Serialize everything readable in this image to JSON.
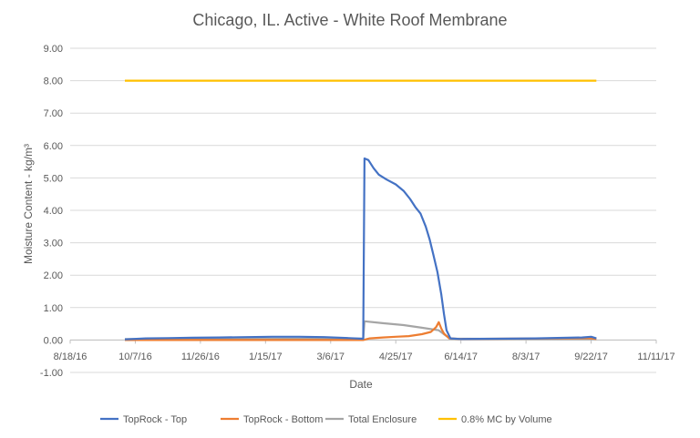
{
  "chart_data": {
    "type": "line",
    "title": "Chicago, IL.  Active - White Roof Membrane",
    "xlabel": "Date",
    "ylabel": "Moisture Content - kg/m³",
    "ylim": [
      -1.0,
      9.0
    ],
    "xlim": [
      "2016-08-18",
      "2017-11-11"
    ],
    "grid": "horizontal",
    "legend_position": "bottom",
    "y_ticks": [
      "-1.00",
      "0.00",
      "1.00",
      "2.00",
      "3.00",
      "4.00",
      "5.00",
      "6.00",
      "7.00",
      "8.00",
      "9.00"
    ],
    "x_ticks": [
      {
        "label": "8/18/16",
        "date": "2016-08-18"
      },
      {
        "label": "10/7/16",
        "date": "2016-10-07"
      },
      {
        "label": "11/26/16",
        "date": "2016-11-26"
      },
      {
        "label": "1/15/17",
        "date": "2017-01-15"
      },
      {
        "label": "3/6/17",
        "date": "2017-03-06"
      },
      {
        "label": "4/25/17",
        "date": "2017-04-25"
      },
      {
        "label": "6/14/17",
        "date": "2017-06-14"
      },
      {
        "label": "8/3/17",
        "date": "2017-08-03"
      },
      {
        "label": "9/22/17",
        "date": "2017-09-22"
      },
      {
        "label": "11/11/17",
        "date": "2017-11-11"
      }
    ],
    "series": [
      {
        "name": "TopRock - Top",
        "color": "#4472c4",
        "points": [
          [
            "2016-09-29",
            0.02
          ],
          [
            "2016-10-15",
            0.05
          ],
          [
            "2016-11-01",
            0.06
          ],
          [
            "2016-11-20",
            0.07
          ],
          [
            "2016-12-10",
            0.08
          ],
          [
            "2017-01-01",
            0.09
          ],
          [
            "2017-01-20",
            0.1
          ],
          [
            "2017-02-10",
            0.1
          ],
          [
            "2017-03-01",
            0.09
          ],
          [
            "2017-03-20",
            0.06
          ],
          [
            "2017-03-31",
            0.04
          ],
          [
            "2017-04-01",
            5.6
          ],
          [
            "2017-04-04",
            5.55
          ],
          [
            "2017-04-08",
            5.3
          ],
          [
            "2017-04-12",
            5.1
          ],
          [
            "2017-04-18",
            4.95
          ],
          [
            "2017-04-25",
            4.8
          ],
          [
            "2017-05-01",
            4.6
          ],
          [
            "2017-05-06",
            4.35
          ],
          [
            "2017-05-10",
            4.1
          ],
          [
            "2017-05-14",
            3.9
          ],
          [
            "2017-05-18",
            3.5
          ],
          [
            "2017-05-21",
            3.1
          ],
          [
            "2017-05-24",
            2.6
          ],
          [
            "2017-05-27",
            2.1
          ],
          [
            "2017-05-30",
            1.4
          ],
          [
            "2017-06-01",
            0.8
          ],
          [
            "2017-06-03",
            0.3
          ],
          [
            "2017-06-06",
            0.05
          ],
          [
            "2017-06-14",
            0.03
          ],
          [
            "2017-07-10",
            0.04
          ],
          [
            "2017-08-10",
            0.05
          ],
          [
            "2017-09-15",
            0.08
          ],
          [
            "2017-09-22",
            0.1
          ],
          [
            "2017-09-26",
            0.05
          ]
        ]
      },
      {
        "name": "TopRock - Bottom",
        "color": "#ed7d31",
        "points": [
          [
            "2016-09-29",
            0.0
          ],
          [
            "2017-03-31",
            0.0
          ],
          [
            "2017-04-05",
            0.05
          ],
          [
            "2017-04-15",
            0.08
          ],
          [
            "2017-04-25",
            0.1
          ],
          [
            "2017-05-05",
            0.12
          ],
          [
            "2017-05-15",
            0.18
          ],
          [
            "2017-05-22",
            0.25
          ],
          [
            "2017-05-26",
            0.4
          ],
          [
            "2017-05-28",
            0.55
          ],
          [
            "2017-05-30",
            0.35
          ],
          [
            "2017-06-01",
            0.2
          ],
          [
            "2017-06-05",
            0.05
          ],
          [
            "2017-06-14",
            0.03
          ],
          [
            "2017-07-15",
            0.04
          ],
          [
            "2017-08-20",
            0.05
          ],
          [
            "2017-09-20",
            0.06
          ],
          [
            "2017-09-26",
            0.03
          ]
        ]
      },
      {
        "name": "Total Enclosure",
        "color": "#a5a5a5",
        "points": [
          [
            "2016-09-29",
            0.03
          ],
          [
            "2017-03-31",
            0.04
          ],
          [
            "2017-04-01",
            0.58
          ],
          [
            "2017-04-15",
            0.52
          ],
          [
            "2017-05-01",
            0.46
          ],
          [
            "2017-05-15",
            0.38
          ],
          [
            "2017-05-28",
            0.3
          ],
          [
            "2017-06-03",
            0.12
          ],
          [
            "2017-06-07",
            0.04
          ],
          [
            "2017-09-26",
            0.03
          ]
        ]
      },
      {
        "name": "0.8% MC by Volume",
        "color": "#ffc000",
        "points": [
          [
            "2016-09-29",
            8.0
          ],
          [
            "2017-09-26",
            8.0
          ]
        ]
      }
    ]
  }
}
